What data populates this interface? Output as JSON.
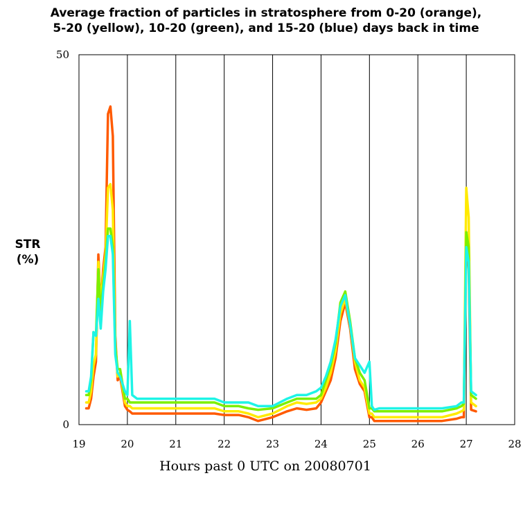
{
  "chart_data": {
    "type": "line",
    "title_lines": [
      "Average fraction of particles in stratosphere from 0-20 (orange),",
      "5-20 (yellow), 10-20 (green), and 15-20 (blue) days back in time"
    ],
    "xlabel": "Hours past 0 UTC on 20080701",
    "ylabel_lines": [
      "STR",
      "(%)"
    ],
    "xlim": [
      19,
      28
    ],
    "ylim": [
      0,
      50
    ],
    "x_ticks": [
      19,
      20,
      21,
      22,
      23,
      24,
      25,
      26,
      27,
      28
    ],
    "y_ticks": [
      0,
      50
    ],
    "vertical_grid": [
      20,
      21,
      22,
      23,
      24,
      25,
      26,
      27
    ],
    "x": [
      19.15,
      19.2,
      19.25,
      19.3,
      19.35,
      19.4,
      19.45,
      19.5,
      19.55,
      19.6,
      19.65,
      19.7,
      19.75,
      19.8,
      19.85,
      19.9,
      19.95,
      20.0,
      20.05,
      20.1,
      20.2,
      20.5,
      21.0,
      21.5,
      21.8,
      22.0,
      22.3,
      22.5,
      22.7,
      23.0,
      23.3,
      23.5,
      23.7,
      23.9,
      24.0,
      24.1,
      24.2,
      24.3,
      24.4,
      24.5,
      24.6,
      24.7,
      24.8,
      24.9,
      25.0,
      25.05,
      25.1,
      25.2,
      25.5,
      26.0,
      26.5,
      26.8,
      26.9,
      26.95,
      27.0,
      27.05,
      27.1,
      27.2
    ],
    "series": [
      {
        "color": "#ff5a00",
        "values": [
          2.2,
          2.2,
          3.5,
          6.5,
          8.5,
          23.0,
          16.0,
          21.0,
          24.0,
          42.0,
          43.0,
          39.0,
          12.0,
          6.0,
          6.5,
          4.5,
          2.5,
          2.0,
          1.8,
          1.5,
          1.5,
          1.5,
          1.5,
          1.5,
          1.5,
          1.3,
          1.3,
          1.0,
          0.5,
          1.0,
          1.8,
          2.2,
          2.0,
          2.2,
          3.0,
          4.5,
          6.0,
          9.0,
          14.0,
          16.5,
          13.0,
          7.5,
          5.5,
          4.5,
          1.0,
          1.0,
          0.5,
          0.5,
          0.5,
          0.5,
          0.5,
          0.8,
          1.0,
          1.0,
          26.0,
          21.0,
          2.0,
          1.8
        ]
      },
      {
        "color": "#ffea00",
        "values": [
          3.0,
          3.0,
          4.5,
          8.0,
          9.5,
          22.0,
          16.5,
          20.0,
          23.0,
          32.0,
          32.5,
          29.0,
          11.0,
          6.5,
          7.0,
          5.0,
          3.0,
          2.5,
          2.5,
          2.2,
          2.2,
          2.2,
          2.2,
          2.2,
          2.2,
          1.8,
          1.8,
          1.5,
          1.0,
          1.5,
          2.5,
          3.0,
          2.8,
          3.0,
          3.5,
          5.0,
          7.0,
          10.0,
          15.0,
          17.0,
          13.5,
          8.5,
          6.0,
          5.0,
          1.5,
          1.5,
          1.0,
          1.0,
          1.0,
          1.0,
          1.0,
          1.5,
          1.8,
          2.0,
          32.0,
          28.0,
          3.0,
          2.5
        ]
      },
      {
        "color": "#7cf000",
        "values": [
          4.0,
          4.0,
          6.0,
          12.5,
          12.0,
          21.0,
          15.0,
          19.0,
          22.0,
          26.5,
          26.5,
          24.0,
          10.5,
          7.5,
          7.5,
          5.5,
          3.5,
          3.5,
          3.0,
          3.0,
          3.0,
          3.0,
          3.0,
          3.0,
          3.0,
          2.5,
          2.5,
          2.2,
          2.0,
          2.2,
          3.0,
          3.5,
          3.5,
          3.5,
          4.0,
          6.0,
          8.0,
          11.0,
          16.5,
          18.0,
          14.0,
          9.0,
          7.0,
          6.0,
          2.2,
          2.2,
          1.8,
          1.8,
          1.8,
          1.8,
          1.8,
          2.2,
          2.5,
          2.8,
          26.0,
          24.0,
          4.0,
          3.5
        ]
      },
      {
        "color": "#1ef4e6",
        "values": [
          4.5,
          4.5,
          6.5,
          12.5,
          12.0,
          17.0,
          13.0,
          18.0,
          21.0,
          25.5,
          25.5,
          23.0,
          9.5,
          7.0,
          6.5,
          5.5,
          4.5,
          4.0,
          14.0,
          4.0,
          3.5,
          3.5,
          3.5,
          3.5,
          3.5,
          3.0,
          3.0,
          3.0,
          2.5,
          2.5,
          3.5,
          4.0,
          4.0,
          4.5,
          5.0,
          6.5,
          8.5,
          11.5,
          16.0,
          17.5,
          13.5,
          9.0,
          8.0,
          7.0,
          8.5,
          2.5,
          2.0,
          2.2,
          2.2,
          2.2,
          2.2,
          2.5,
          3.0,
          3.0,
          24.0,
          22.0,
          4.5,
          4.0
        ]
      }
    ]
  }
}
